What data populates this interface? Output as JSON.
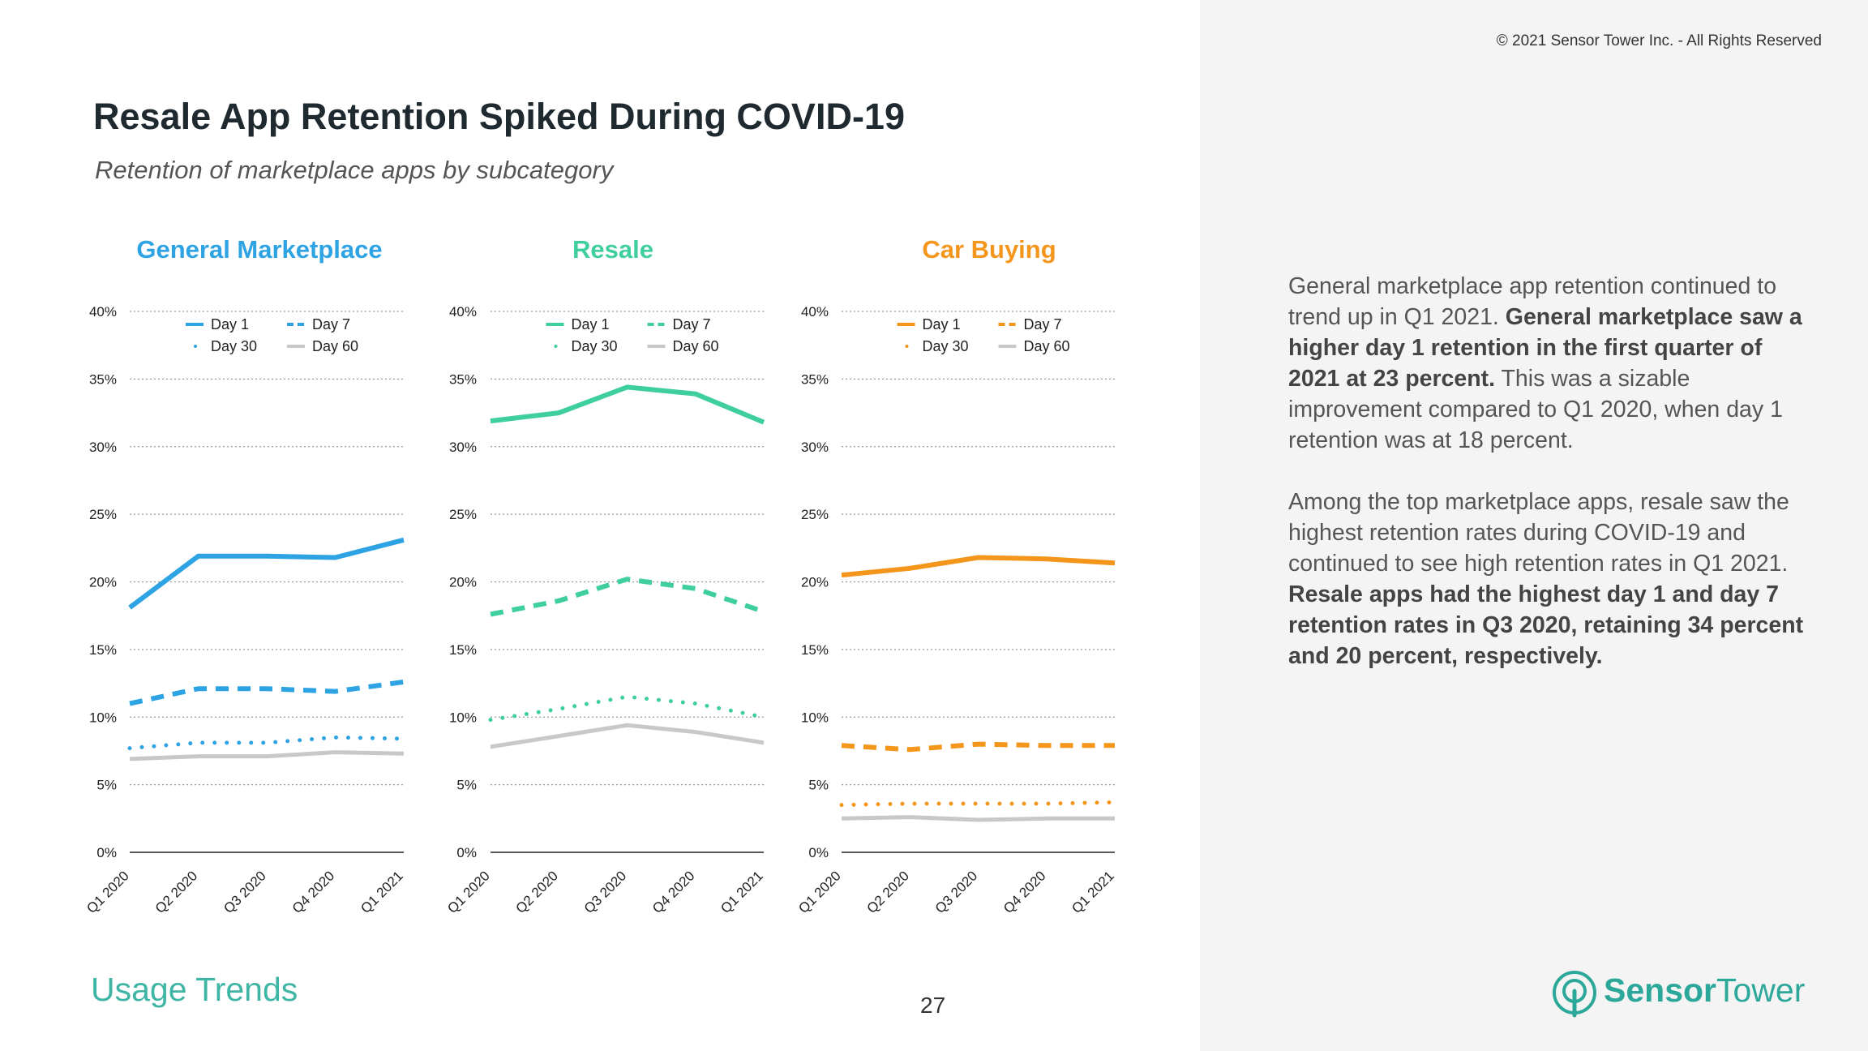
{
  "copyright": "© 2021 Sensor Tower Inc. - All Rights Reserved",
  "title": "Resale App Retention Spiked During COVID-19",
  "subtitle": "Retention of marketplace apps by subcategory",
  "body": {
    "p1_normal1": "General marketplace app retention continued to trend up in Q1 2021. ",
    "p1_bold": "General marketplace saw a higher day 1 retention in the first quarter of 2021 at 23 percent.",
    "p1_normal2": " This was a sizable improvement compared to Q1 2020, when day 1 retention was at 18 percent.",
    "p2_normal": "Among the top marketplace apps, resale saw the highest retention rates during COVID-19 and continued to see high retention rates in Q1 2021. ",
    "p2_bold": "Resale apps had the highest day 1 and day 7 retention rates in Q3 2020, retaining 34 percent and 20 percent, respectively."
  },
  "footer": {
    "section": "Usage Trends",
    "page": "27"
  },
  "brand": {
    "name_bold": "Sensor",
    "name_light": "Tower"
  },
  "colors": {
    "general": "#2ea3e3",
    "resale": "#3fcf9c",
    "car": "#f4961c",
    "day60": "#c8c8c8",
    "accent": "#3fb6a5"
  },
  "chart_data": [
    {
      "type": "line",
      "title": "General Marketplace",
      "x": [
        "Q1 2020",
        "Q2 2020",
        "Q3 2020",
        "Q4 2020",
        "Q1 2021"
      ],
      "yticks": [
        "0%",
        "5%",
        "10%",
        "15%",
        "20%",
        "25%",
        "30%",
        "35%",
        "40%"
      ],
      "ylim": [
        0,
        40
      ],
      "legend": "top-center",
      "series": [
        {
          "name": "Day 1",
          "style": "solid",
          "values": [
            18.1,
            21.9,
            21.9,
            21.8,
            23.1
          ]
        },
        {
          "name": "Day 7",
          "style": "dashed",
          "values": [
            11.0,
            12.1,
            12.1,
            11.9,
            12.6
          ]
        },
        {
          "name": "Day 30",
          "style": "dotted",
          "values": [
            7.7,
            8.1,
            8.1,
            8.5,
            8.4
          ]
        },
        {
          "name": "Day 60",
          "style": "solid-gray",
          "values": [
            6.9,
            7.1,
            7.1,
            7.4,
            7.3
          ]
        }
      ]
    },
    {
      "type": "line",
      "title": "Resale",
      "x": [
        "Q1 2020",
        "Q2 2020",
        "Q3 2020",
        "Q4 2020",
        "Q1 2021"
      ],
      "yticks": [
        "0%",
        "5%",
        "10%",
        "15%",
        "20%",
        "25%",
        "30%",
        "35%",
        "40%"
      ],
      "ylim": [
        0,
        40
      ],
      "legend": "top-center",
      "series": [
        {
          "name": "Day 1",
          "style": "solid",
          "values": [
            31.9,
            32.5,
            34.4,
            33.9,
            31.8
          ]
        },
        {
          "name": "Day 7",
          "style": "dashed",
          "values": [
            17.6,
            18.6,
            20.2,
            19.5,
            17.8
          ]
        },
        {
          "name": "Day 30",
          "style": "dotted",
          "values": [
            9.8,
            10.6,
            11.5,
            11.0,
            10.0
          ]
        },
        {
          "name": "Day 60",
          "style": "solid-gray",
          "values": [
            7.8,
            8.6,
            9.4,
            8.9,
            8.1
          ]
        }
      ]
    },
    {
      "type": "line",
      "title": "Car Buying",
      "x": [
        "Q1 2020",
        "Q2 2020",
        "Q3 2020",
        "Q4 2020",
        "Q1 2021"
      ],
      "yticks": [
        "0%",
        "5%",
        "10%",
        "15%",
        "20%",
        "25%",
        "30%",
        "35%",
        "40%"
      ],
      "ylim": [
        0,
        40
      ],
      "legend": "top-center",
      "series": [
        {
          "name": "Day 1",
          "style": "solid",
          "values": [
            20.5,
            21.0,
            21.8,
            21.7,
            21.4
          ]
        },
        {
          "name": "Day 7",
          "style": "dashed",
          "values": [
            7.9,
            7.6,
            8.0,
            7.9,
            7.9
          ]
        },
        {
          "name": "Day 30",
          "style": "dotted",
          "values": [
            3.5,
            3.6,
            3.6,
            3.6,
            3.7
          ]
        },
        {
          "name": "Day 60",
          "style": "solid-gray",
          "values": [
            2.5,
            2.6,
            2.4,
            2.5,
            2.5
          ]
        }
      ]
    }
  ]
}
